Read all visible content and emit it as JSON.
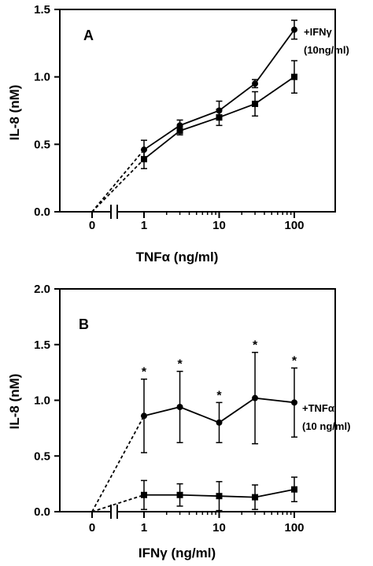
{
  "chart_data": [
    {
      "type": "line",
      "panel": "A",
      "xlabel": "TNFα (ng/ml)",
      "ylabel": "IL-8 (nM)",
      "ylim": [
        0,
        1.5
      ],
      "y_ticks": [
        "0.0",
        "0.5",
        "1.0",
        "1.5"
      ],
      "x_tick_labels": [
        "0",
        "1",
        "10",
        "100"
      ],
      "x_scale": "log, with axis break between 0 and 1",
      "annotation": [
        "+IFNγ",
        "(10ng/ml)"
      ],
      "series": [
        {
          "name": "+IFNγ (10ng/ml)",
          "marker": "circle",
          "x": [
            1,
            3,
            10,
            30,
            100
          ],
          "values": [
            0.46,
            0.64,
            0.75,
            0.95,
            1.35
          ],
          "errors": [
            0.07,
            0.04,
            0.07,
            0.03,
            0.07
          ],
          "zero_value": 0
        },
        {
          "marker": "square",
          "x": [
            1,
            3,
            10,
            30,
            100
          ],
          "values": [
            0.39,
            0.6,
            0.7,
            0.8,
            1.0
          ],
          "errors": [
            0.07,
            0.03,
            0.06,
            0.09,
            0.12
          ],
          "zero_value": 0
        }
      ]
    },
    {
      "type": "line",
      "panel": "B",
      "xlabel": "IFNγ (ng/ml)",
      "ylabel": "IL-8 (nM)",
      "ylim": [
        0,
        2.0
      ],
      "y_ticks": [
        "0.0",
        "0.5",
        "1.0",
        "1.5",
        "2.0"
      ],
      "x_tick_labels": [
        "0",
        "1",
        "10",
        "100"
      ],
      "x_scale": "log, with axis break between 0 and 1",
      "annotation": [
        "+TNFα",
        "(10 ng/ml)"
      ],
      "significance_marker": "*",
      "series": [
        {
          "name": "+TNFα (10 ng/ml)",
          "marker": "circle",
          "x": [
            1,
            3,
            10,
            30,
            100
          ],
          "values": [
            0.86,
            0.94,
            0.8,
            1.02,
            0.98
          ],
          "errors": [
            0.33,
            0.32,
            0.18,
            0.41,
            0.31
          ],
          "significant": [
            true,
            true,
            true,
            true,
            true
          ],
          "zero_value": 0
        },
        {
          "marker": "square",
          "x": [
            1,
            3,
            10,
            30,
            100
          ],
          "values": [
            0.15,
            0.15,
            0.14,
            0.13,
            0.2
          ],
          "errors": [
            0.13,
            0.1,
            0.13,
            0.11,
            0.11
          ],
          "zero_value": 0
        }
      ]
    }
  ]
}
